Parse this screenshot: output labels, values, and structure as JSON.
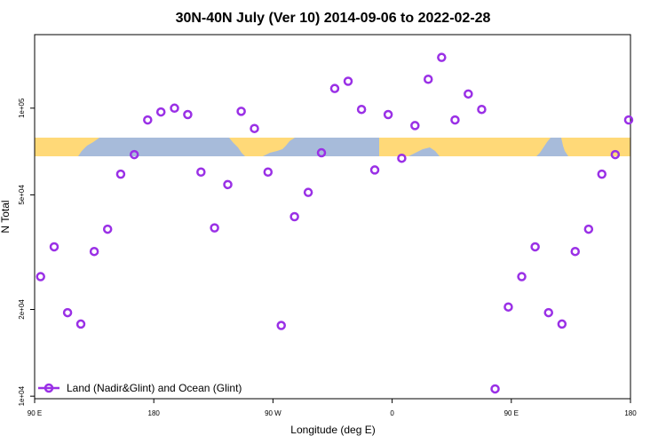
{
  "chart_data": {
    "type": "scatter",
    "title": "30N-40N July (Ver 10)   2014-09-06 to 2022-02-28",
    "xlabel": "Longitude (deg E)",
    "ylabel": "N Total",
    "xlim": [
      90,
      450
    ],
    "y_scale": "log",
    "ylim": [
      9800,
      180000
    ],
    "x_ticks": [
      {
        "value": 90,
        "label": "90 E"
      },
      {
        "value": 162,
        "label": "180"
      },
      {
        "value": 234,
        "label": "90 W"
      },
      {
        "value": 306,
        "label": "0"
      },
      {
        "value": 378,
        "label": "90 E"
      },
      {
        "value": 450,
        "label": "180"
      }
    ],
    "y_ticks": [
      {
        "value": 10000,
        "label": "1e+04"
      },
      {
        "value": 20000,
        "label": "2e+04"
      },
      {
        "value": 50000,
        "label": "5e+04"
      },
      {
        "value": 100000,
        "label": "1e+05"
      }
    ],
    "series": [
      {
        "name": "Land (Nadir&Glint) and Ocean (Glint)",
        "color": "#9a30e6",
        "marker": "open-circle",
        "x": [
          93.6,
          101.8,
          109.9,
          117.9,
          126.0,
          134.1,
          142.0,
          150.2,
          158.3,
          166.3,
          174.5,
          182.5,
          190.5,
          198.7,
          206.7,
          214.8,
          222.8,
          231.0,
          239.0,
          247.0,
          255.3,
          263.3,
          271.3,
          279.4,
          287.5,
          295.5,
          303.6,
          311.8,
          319.8,
          327.8,
          335.9,
          344.0,
          352.0,
          360.1,
          368.2,
          376.2,
          384.3,
          392.4,
          400.5,
          408.6,
          416.6,
          424.7,
          432.7,
          440.8,
          448.9
        ],
        "y": [
          26000,
          33000,
          19500,
          17800,
          31800,
          38000,
          59000,
          69000,
          91000,
          97000,
          100000,
          95000,
          60000,
          38400,
          54300,
          97500,
          85000,
          60000,
          17600,
          42000,
          51000,
          70000,
          117000,
          124000,
          99000,
          61000,
          95000,
          67000,
          87000,
          126000,
          150000,
          91000,
          112000,
          99000,
          10600,
          20400,
          26000,
          33000,
          19500,
          17800,
          31800,
          38000,
          59000,
          69000,
          91000
        ]
      }
    ],
    "background_map": {
      "land_color": "#ffd978",
      "ocean_color": "#a7bbda"
    },
    "legend": {
      "position": "bottom-left",
      "label": "Land (Nadir&Glint) and Ocean (Glint)"
    },
    "grid": false
  }
}
